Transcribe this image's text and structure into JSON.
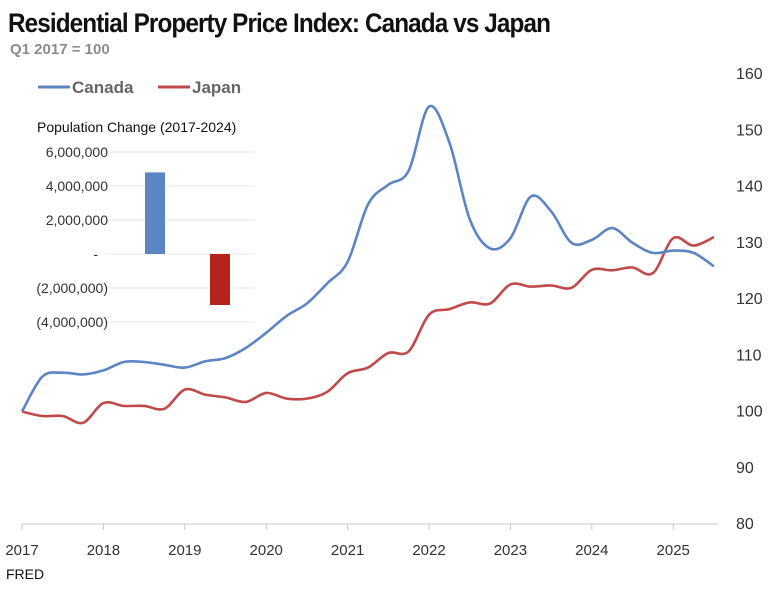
{
  "title": "Residential Property Price Index: Canada vs Japan",
  "subtitle": "Q1 2017 = 100",
  "source": "FRED",
  "chart_data": [
    {
      "type": "line",
      "title": "Residential Property Price Index: Canada vs Japan",
      "subtitle": "Q1 2017 = 100",
      "xlabel": "",
      "ylabel": "",
      "x_ticks": [
        "2017",
        "2018",
        "2019",
        "2020",
        "2021",
        "2022",
        "2023",
        "2024",
        "2025"
      ],
      "y_ticks": [
        80,
        90,
        100,
        110,
        120,
        130,
        140,
        150,
        160
      ],
      "ylim": [
        80,
        160
      ],
      "xlim": [
        2017.0,
        2025.55
      ],
      "legend_position": "top-left",
      "series": [
        {
          "name": "Canada",
          "color": "#5b85c3",
          "x": [
            2017.0,
            2017.25,
            2017.5,
            2017.75,
            2018.0,
            2018.25,
            2018.5,
            2018.75,
            2019.0,
            2019.25,
            2019.5,
            2019.75,
            2020.0,
            2020.25,
            2020.5,
            2020.75,
            2021.0,
            2021.25,
            2021.5,
            2021.75,
            2022.0,
            2022.25,
            2022.5,
            2022.75,
            2023.0,
            2023.25,
            2023.5,
            2023.75,
            2024.0,
            2024.25,
            2024.5,
            2024.75,
            2025.0,
            2025.25,
            2025.5
          ],
          "values": [
            100.0,
            106.2,
            106.9,
            106.6,
            107.3,
            108.8,
            108.8,
            108.3,
            107.8,
            108.9,
            109.5,
            111.3,
            114.0,
            117.0,
            119.2,
            122.8,
            126.6,
            136.8,
            140.3,
            142.8,
            154.2,
            147.8,
            134.2,
            129.0,
            130.8,
            138.2,
            135.6,
            130.0,
            130.5,
            132.6,
            130.0,
            128.2,
            128.6,
            128.2,
            125.8
          ]
        },
        {
          "name": "Japan",
          "color": "#bf4a49",
          "x": [
            2017.0,
            2017.25,
            2017.5,
            2017.75,
            2018.0,
            2018.25,
            2018.5,
            2018.75,
            2019.0,
            2019.25,
            2019.5,
            2019.75,
            2020.0,
            2020.25,
            2020.5,
            2020.75,
            2021.0,
            2021.25,
            2021.5,
            2021.75,
            2022.0,
            2022.25,
            2022.5,
            2022.75,
            2023.0,
            2023.25,
            2023.5,
            2023.75,
            2024.0,
            2024.25,
            2024.5,
            2024.75,
            2025.0,
            2025.25,
            2025.5
          ],
          "values": [
            100.0,
            99.2,
            99.2,
            98.0,
            101.5,
            101.0,
            101.0,
            100.5,
            103.9,
            103.0,
            102.5,
            101.7,
            103.3,
            102.3,
            102.3,
            103.5,
            106.8,
            107.8,
            110.4,
            110.7,
            117.2,
            118.2,
            119.4,
            119.2,
            122.6,
            122.2,
            122.4,
            122.0,
            125.2,
            125.1,
            125.6,
            124.6,
            130.8,
            129.5,
            131.0
          ]
        }
      ]
    },
    {
      "type": "bar",
      "title": "Population Change (2017-2024)",
      "categories": [
        "Canada",
        "Japan"
      ],
      "values": [
        4800000,
        -3000000
      ],
      "colors": [
        "#5b85c3",
        "#b5241c"
      ],
      "ylim": [
        -4000000,
        6000000
      ],
      "y_ticks": [
        6000000,
        4000000,
        2000000,
        0,
        -2000000,
        -4000000
      ],
      "y_tick_labels": [
        "6,000,000",
        "4,000,000",
        "2,000,000",
        "-",
        "(2,000,000)",
        "(4,000,000)"
      ]
    }
  ]
}
